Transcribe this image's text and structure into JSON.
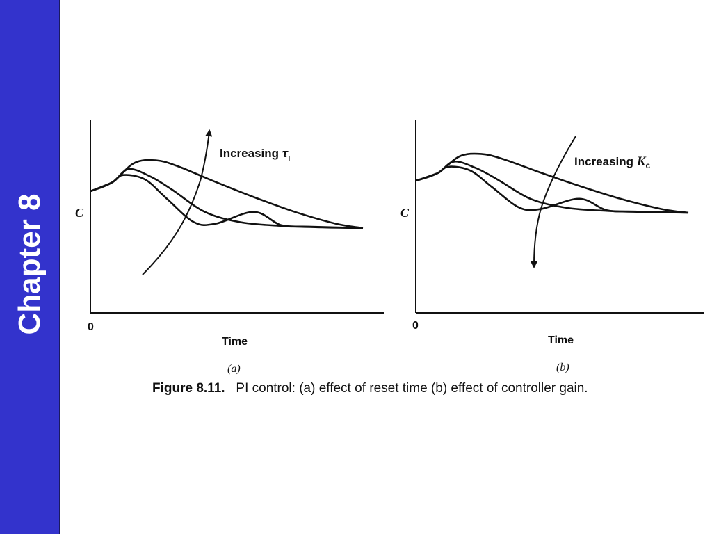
{
  "theme": {
    "sidebar_color": "#3333cc",
    "ink_color": "#111111"
  },
  "sidebar": {
    "label": "Chapter 8"
  },
  "caption": {
    "figure_label": "Figure 8.11.",
    "text": "PI control: (a) effect of reset time (b) effect of controller gain."
  },
  "chart_data": [
    {
      "type": "line",
      "panel_label": "(a)",
      "xlabel": "Time",
      "ylabel": "C",
      "x_tick": "0",
      "annotation": {
        "text": "Increasing ",
        "symbol": "τ",
        "subscript": "I"
      },
      "arrow_direction": "up",
      "series": [
        {
          "points": [
            [
              0,
              0.5
            ],
            [
              0.8,
              0.62
            ],
            [
              1.2,
              0.72
            ],
            [
              2.0,
              0.66
            ],
            [
              2.8,
              0.4
            ],
            [
              3.8,
              0.08
            ],
            [
              4.6,
              0.06
            ],
            [
              6.0,
              0.22
            ],
            [
              7.0,
              0.04
            ],
            [
              8.0,
              0.02
            ],
            [
              10,
              0
            ]
          ]
        },
        {
          "points": [
            [
              0,
              0.5
            ],
            [
              0.8,
              0.62
            ],
            [
              1.4,
              0.8
            ],
            [
              2.2,
              0.7
            ],
            [
              3.0,
              0.52
            ],
            [
              4.2,
              0.22
            ],
            [
              5.5,
              0.08
            ],
            [
              7.0,
              0.03
            ],
            [
              8.5,
              0.01
            ],
            [
              10,
              0
            ]
          ]
        },
        {
          "points": [
            [
              0,
              0.5
            ],
            [
              0.8,
              0.62
            ],
            [
              1.6,
              0.88
            ],
            [
              2.4,
              0.92
            ],
            [
              3.2,
              0.84
            ],
            [
              4.5,
              0.64
            ],
            [
              6.0,
              0.42
            ],
            [
              7.5,
              0.22
            ],
            [
              9.0,
              0.06
            ],
            [
              10,
              0
            ]
          ]
        }
      ]
    },
    {
      "type": "line",
      "panel_label": "(b)",
      "xlabel": "Time",
      "ylabel": "C",
      "x_tick": "0",
      "annotation": {
        "text": "Increasing ",
        "symbol": "K",
        "subscript": "c"
      },
      "arrow_direction": "down",
      "series": [
        {
          "points": [
            [
              0,
              0.5
            ],
            [
              0.8,
              0.62
            ],
            [
              1.2,
              0.72
            ],
            [
              2.0,
              0.66
            ],
            [
              2.8,
              0.4
            ],
            [
              3.8,
              0.08
            ],
            [
              4.6,
              0.06
            ],
            [
              6.0,
              0.22
            ],
            [
              7.0,
              0.04
            ],
            [
              8.0,
              0.02
            ],
            [
              10,
              0
            ]
          ]
        },
        {
          "points": [
            [
              0,
              0.5
            ],
            [
              0.8,
              0.62
            ],
            [
              1.4,
              0.8
            ],
            [
              2.2,
              0.7
            ],
            [
              3.0,
              0.52
            ],
            [
              4.2,
              0.22
            ],
            [
              5.5,
              0.08
            ],
            [
              7.0,
              0.03
            ],
            [
              8.5,
              0.01
            ],
            [
              10,
              0
            ]
          ]
        },
        {
          "points": [
            [
              0,
              0.5
            ],
            [
              0.8,
              0.62
            ],
            [
              1.6,
              0.88
            ],
            [
              2.4,
              0.92
            ],
            [
              3.2,
              0.84
            ],
            [
              4.5,
              0.64
            ],
            [
              6.0,
              0.42
            ],
            [
              7.5,
              0.22
            ],
            [
              9.0,
              0.06
            ],
            [
              10,
              0
            ]
          ]
        }
      ]
    }
  ]
}
